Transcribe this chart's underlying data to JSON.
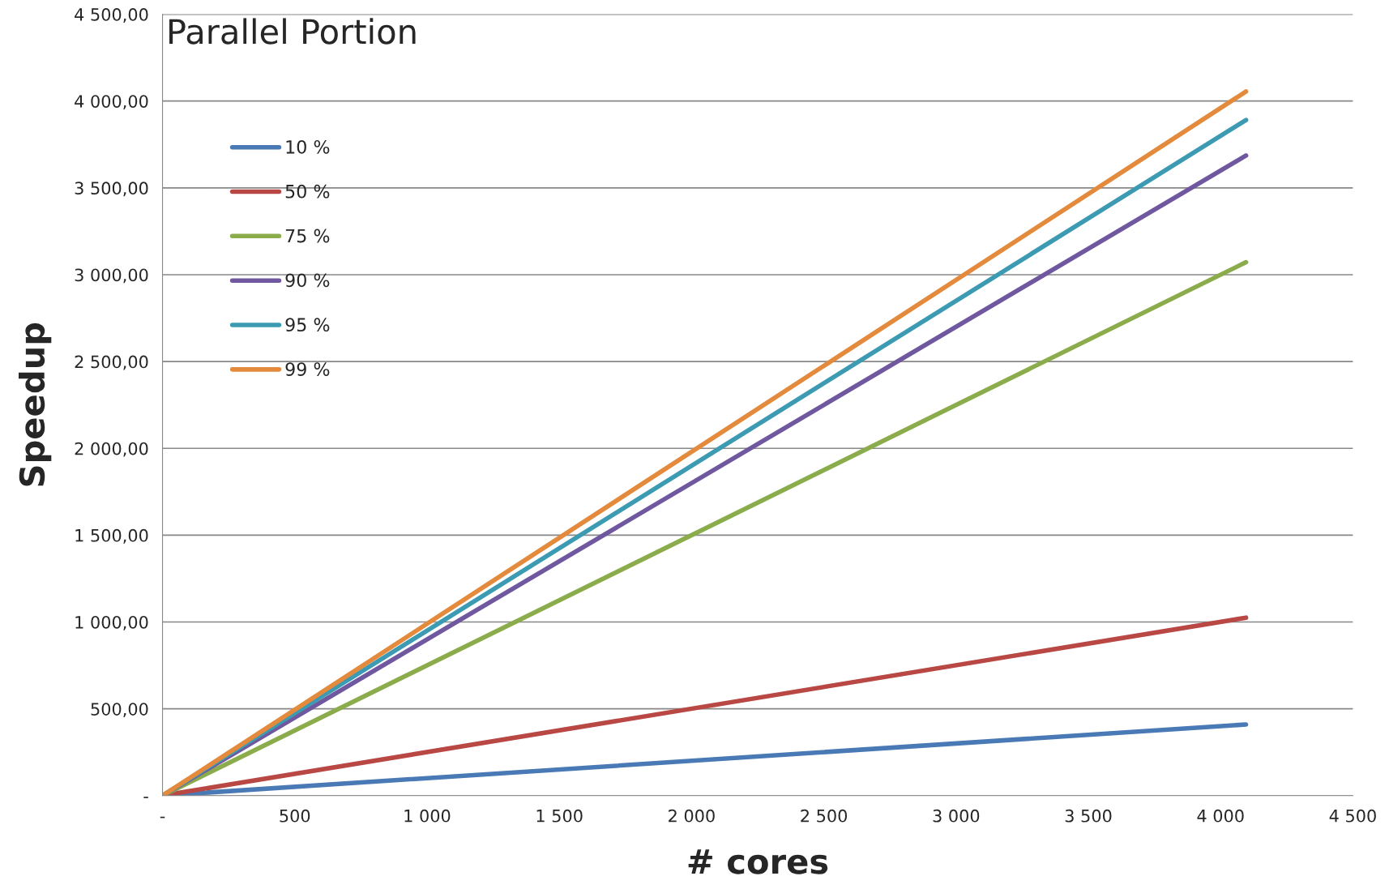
{
  "chart_data": {
    "type": "line",
    "title": "Parallel Portion",
    "xlabel": "# cores",
    "ylabel": "Speedup",
    "x": [
      1,
      4096
    ],
    "series": [
      {
        "name": "10 %",
        "color": "#4a7ab5",
        "values": [
          1,
          410
        ]
      },
      {
        "name": "50 %",
        "color": "#b94743",
        "values": [
          1,
          1025
        ]
      },
      {
        "name": "75 %",
        "color": "#8aac4b",
        "values": [
          1,
          3072
        ]
      },
      {
        "name": "90 %",
        "color": "#6f58a0",
        "values": [
          1,
          3686
        ]
      },
      {
        "name": "95 %",
        "color": "#3c9bb3",
        "values": [
          1,
          3891
        ]
      },
      {
        "name": "99 %",
        "color": "#e48a3c",
        "values": [
          1,
          4055
        ]
      }
    ],
    "xlim": [
      0,
      4500
    ],
    "ylim": [
      0,
      4500
    ],
    "xticks": [
      {
        "value": 0,
        "label": "-"
      },
      500,
      {
        "value": 1000,
        "label": "1 000"
      },
      {
        "value": 1500,
        "label": "1 500"
      },
      {
        "value": 2000,
        "label": "2 000"
      },
      {
        "value": 2500,
        "label": "2 500"
      },
      {
        "value": 3000,
        "label": "3 000"
      },
      {
        "value": 3500,
        "label": "3 500"
      },
      {
        "value": 4000,
        "label": "4 000"
      },
      {
        "value": 4500,
        "label": "4 500"
      }
    ],
    "yticks": [
      {
        "value": 0,
        "label": "-"
      },
      {
        "value": 500,
        "label": "500,00"
      },
      {
        "value": 1000,
        "label": "1 000,00"
      },
      {
        "value": 1500,
        "label": "1 500,00"
      },
      {
        "value": 2000,
        "label": "2 000,00"
      },
      {
        "value": 2500,
        "label": "2 500,00"
      },
      {
        "value": 3000,
        "label": "3 000,00"
      },
      {
        "value": 3500,
        "label": "3 500,00"
      },
      {
        "value": 4000,
        "label": "4 000,00"
      },
      {
        "value": 4500,
        "label": "4 500,00"
      }
    ],
    "grid": "y",
    "legend": "top left",
    "line_style": "solid",
    "marker": "none"
  }
}
